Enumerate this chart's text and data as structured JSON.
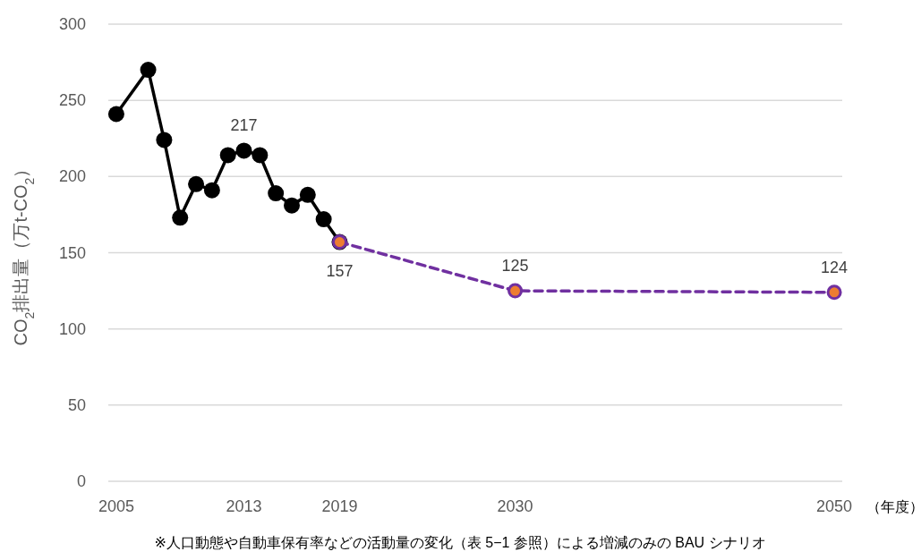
{
  "chart_data": {
    "type": "line",
    "ylabel": "CO$_{2}$排出量（万t-CO$_{2}$）",
    "xlabel": "（年度）",
    "xlim": [
      2004.5,
      2050.5
    ],
    "xticks": [
      2005,
      2013,
      2019,
      2030,
      2050
    ],
    "ylim": [
      0,
      300
    ],
    "yticks": [
      0,
      50,
      100,
      150,
      200,
      250,
      300
    ],
    "grid": "y",
    "marker": "circle",
    "series": [
      {
        "color": "#000000",
        "x": [
          2005,
          2007,
          2008,
          2009,
          2010,
          2011,
          2012,
          2013,
          2014,
          2015,
          2016,
          2017,
          2018,
          2019
        ],
        "values": [
          241,
          270,
          224,
          173,
          195,
          191,
          214,
          217,
          214,
          189,
          181,
          188,
          172,
          157
        ],
        "value_labels": [
          null,
          null,
          null,
          null,
          null,
          null,
          null,
          "217",
          null,
          null,
          null,
          null,
          null,
          "157"
        ]
      },
      {
        "color": "#7030a0",
        "line_style": "dashed",
        "colors": [
          "#ed7d31",
          "#ed7d31",
          "#ed7d31"
        ],
        "x": [
          2019,
          2030,
          2050
        ],
        "values": [
          157,
          125,
          124
        ],
        "value_labels": [
          null,
          "125",
          "124"
        ]
      }
    ],
    "annotations": [
      "※人口動態や自動車保有率などの活動量の変化（表 5−1 参照）による増減のみの BAU シナリオ"
    ]
  }
}
